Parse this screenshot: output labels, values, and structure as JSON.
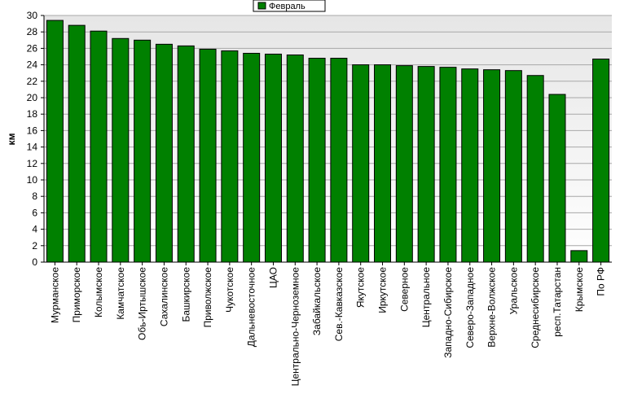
{
  "chart_data": {
    "type": "bar",
    "title": "",
    "xlabel": "",
    "ylabel": "км",
    "ylim": [
      0,
      30
    ],
    "yticks": [
      0,
      2,
      4,
      6,
      8,
      10,
      12,
      14,
      16,
      18,
      20,
      22,
      24,
      26,
      28,
      30
    ],
    "grid": true,
    "legend_position": "top-center",
    "categories": [
      "Мурманское",
      "Приморское",
      "Колымское",
      "Камчатское",
      "Обь-Иртышское",
      "Сахалинское",
      "Башкирское",
      "Приволжское",
      "Чукотское",
      "Дальневосточное",
      "ЦАО",
      "Центрально-Черноземное",
      "Забайкальское",
      "Сев.-Кавказское",
      "Якутское",
      "Иркутское",
      "Северное",
      "Центральное",
      "Западно-Сибирское",
      "Северо-Западное",
      "Верхне-Волжское",
      "Уральское",
      "Среднесибирское",
      "респ.Татарстан",
      "Крымское",
      "По РФ"
    ],
    "series": [
      {
        "name": "Февраль",
        "color": "#008000",
        "values": [
          29.4,
          28.8,
          28.1,
          27.2,
          27.0,
          26.5,
          26.3,
          25.9,
          25.7,
          25.4,
          25.3,
          25.2,
          24.8,
          24.8,
          24.0,
          24.0,
          23.9,
          23.8,
          23.7,
          23.5,
          23.4,
          23.3,
          22.7,
          20.4,
          1.4,
          24.7
        ]
      }
    ]
  }
}
